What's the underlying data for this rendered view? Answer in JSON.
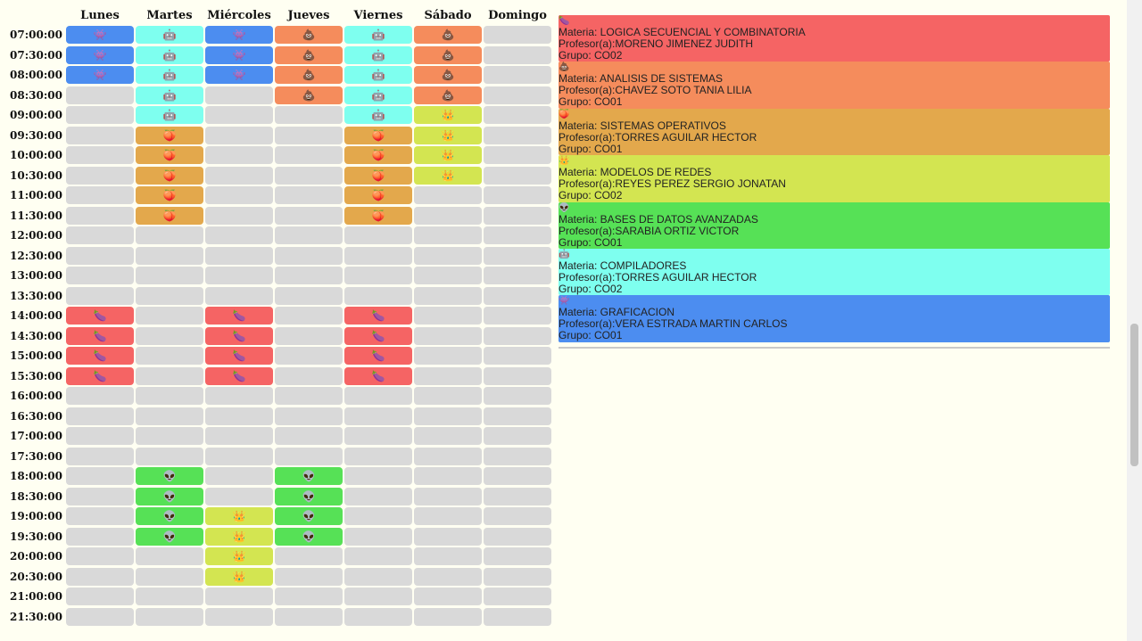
{
  "days": [
    "Lunes",
    "Martes",
    "Miércoles",
    "Jueves",
    "Viernes",
    "Sábado",
    "Domingo"
  ],
  "times": [
    "07:00:00",
    "07:30:00",
    "08:00:00",
    "08:30:00",
    "09:00:00",
    "09:30:00",
    "10:00:00",
    "10:30:00",
    "11:00:00",
    "11:30:00",
    "12:00:00",
    "12:30:00",
    "13:00:00",
    "13:30:00",
    "14:00:00",
    "14:30:00",
    "15:00:00",
    "15:30:00",
    "16:00:00",
    "16:30:00",
    "17:00:00",
    "17:30:00",
    "18:00:00",
    "18:30:00",
    "19:00:00",
    "19:30:00",
    "20:00:00",
    "20:30:00",
    "21:00:00",
    "21:30:00"
  ],
  "subjects": {
    "LSC": {
      "icon_name": "eggplant-icon",
      "icon": "🍆",
      "color": "#f56464",
      "materia": "Materia: LOGICA SECUENCIAL Y COMBINATORIA",
      "profesor": "Profesor(a):MORENO JIMENEZ JUDITH",
      "grupo": "Grupo: CO02"
    },
    "AS": {
      "icon_name": "poop-icon",
      "icon": "💩",
      "color": "#f58c5c",
      "materia": "Materia: ANALISIS DE SISTEMAS",
      "profesor": "Profesor(a):CHAVEZ SOTO TANIA LILIA",
      "grupo": "Grupo: CO01"
    },
    "SO": {
      "icon_name": "peach-icon",
      "icon": "🍑",
      "color": "#e3a84c",
      "materia": "Materia: SISTEMAS OPERATIVOS",
      "profesor": "Profesor(a):TORRES AGUILAR HECTOR",
      "grupo": "Grupo: CO01"
    },
    "MR": {
      "icon_name": "crown-icon",
      "icon": "👑",
      "color": "#d3e551",
      "materia": "Materia: MODELOS DE REDES",
      "profesor": "Profesor(a):REYES PEREZ SERGIO JONATAN",
      "grupo": "Grupo: CO02"
    },
    "BDA": {
      "icon_name": "alien-icon",
      "icon": "👽",
      "color": "#56e156",
      "materia": "Materia: BASES DE DATOS AVANZADAS",
      "profesor": "Profesor(a):SARABIA ORTIZ VICTOR",
      "grupo": "Grupo: CO01"
    },
    "COMP": {
      "icon_name": "robot-icon",
      "icon": "🤖",
      "color": "#7effef",
      "materia": "Materia: COMPILADORES",
      "profesor": "Profesor(a):TORRES AGUILAR HECTOR",
      "grupo": "Grupo: CO02"
    },
    "GRAF": {
      "icon_name": "space-invader-icon",
      "icon": "👾",
      "color": "#4c8df0",
      "materia": "Materia: GRAFICACION",
      "profesor": "Profesor(a):VERA ESTRADA MARTIN CARLOS",
      "grupo": "Grupo: CO01"
    }
  },
  "legend_order": [
    "LSC",
    "AS",
    "SO",
    "MR",
    "BDA",
    "COMP",
    "GRAF"
  ],
  "empty_color": "#d9d9d9",
  "grid": [
    [
      "GRAF",
      "COMP",
      "GRAF",
      "AS",
      "COMP",
      "AS",
      ""
    ],
    [
      "GRAF",
      "COMP",
      "GRAF",
      "AS",
      "COMP",
      "AS",
      ""
    ],
    [
      "GRAF",
      "COMP",
      "GRAF",
      "AS",
      "COMP",
      "AS",
      ""
    ],
    [
      "",
      "COMP",
      "",
      "AS",
      "COMP",
      "AS",
      ""
    ],
    [
      "",
      "COMP",
      "",
      "",
      "COMP",
      "MR",
      ""
    ],
    [
      "",
      "SO",
      "",
      "",
      "SO",
      "MR",
      ""
    ],
    [
      "",
      "SO",
      "",
      "",
      "SO",
      "MR",
      ""
    ],
    [
      "",
      "SO",
      "",
      "",
      "SO",
      "MR",
      ""
    ],
    [
      "",
      "SO",
      "",
      "",
      "SO",
      "",
      ""
    ],
    [
      "",
      "SO",
      "",
      "",
      "SO",
      "",
      ""
    ],
    [
      "",
      "",
      "",
      "",
      "",
      "",
      ""
    ],
    [
      "",
      "",
      "",
      "",
      "",
      "",
      ""
    ],
    [
      "",
      "",
      "",
      "",
      "",
      "",
      ""
    ],
    [
      "",
      "",
      "",
      "",
      "",
      "",
      ""
    ],
    [
      "LSC",
      "",
      "LSC",
      "",
      "LSC",
      "",
      ""
    ],
    [
      "LSC",
      "",
      "LSC",
      "",
      "LSC",
      "",
      ""
    ],
    [
      "LSC",
      "",
      "LSC",
      "",
      "LSC",
      "",
      ""
    ],
    [
      "LSC",
      "",
      "LSC",
      "",
      "LSC",
      "",
      ""
    ],
    [
      "",
      "",
      "",
      "",
      "",
      "",
      ""
    ],
    [
      "",
      "",
      "",
      "",
      "",
      "",
      ""
    ],
    [
      "",
      "",
      "",
      "",
      "",
      "",
      ""
    ],
    [
      "",
      "",
      "",
      "",
      "",
      "",
      ""
    ],
    [
      "",
      "BDA",
      "",
      "BDA",
      "",
      "",
      ""
    ],
    [
      "",
      "BDA",
      "",
      "BDA",
      "",
      "",
      ""
    ],
    [
      "",
      "BDA",
      "MR",
      "BDA",
      "",
      "",
      ""
    ],
    [
      "",
      "BDA",
      "MR",
      "BDA",
      "",
      "",
      ""
    ],
    [
      "",
      "",
      "MR",
      "",
      "",
      "",
      ""
    ],
    [
      "",
      "",
      "MR",
      "",
      "",
      "",
      ""
    ],
    [
      "",
      "",
      "",
      "",
      "",
      "",
      ""
    ],
    [
      "",
      "",
      "",
      "",
      "",
      "",
      ""
    ]
  ]
}
